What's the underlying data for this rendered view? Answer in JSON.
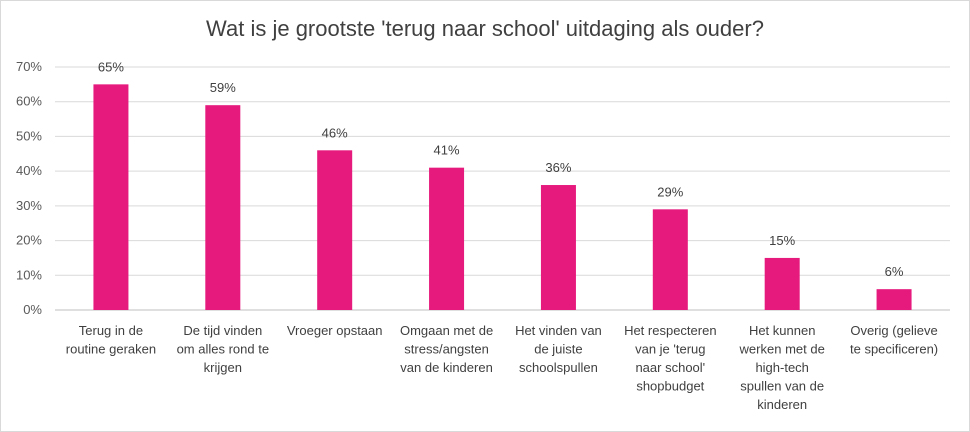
{
  "chart_data": {
    "type": "bar",
    "title": "Wat is je grootste 'terug naar school' uitdaging als ouder?",
    "xlabel": "",
    "ylabel": "",
    "ylim": [
      0,
      70
    ],
    "yticks": [
      "0%",
      "10%",
      "20%",
      "30%",
      "40%",
      "50%",
      "60%",
      "70%"
    ],
    "grid": true,
    "legend": "none",
    "bar_color": "#e6197d",
    "categories": [
      [
        "Terug in de",
        "routine geraken"
      ],
      [
        "De tijd vinden",
        "om alles rond te",
        "krijgen"
      ],
      [
        "Vroeger opstaan"
      ],
      [
        "Omgaan met de",
        "stress/angsten",
        "van de kinderen"
      ],
      [
        "Het vinden van",
        "de juiste",
        "schoolspullen"
      ],
      [
        "Het respecteren",
        "van je 'terug",
        "naar school'",
        "shopbudget"
      ],
      [
        "Het kunnen",
        "werken met de",
        "high-tech",
        "spullen van de",
        "kinderen"
      ],
      [
        "Overig (gelieve",
        "te specificeren)"
      ]
    ],
    "values": [
      65,
      59,
      46,
      41,
      36,
      29,
      15,
      6
    ],
    "data_labels": [
      "65%",
      "59%",
      "46%",
      "41%",
      "36%",
      "29%",
      "15%",
      "6%"
    ]
  }
}
